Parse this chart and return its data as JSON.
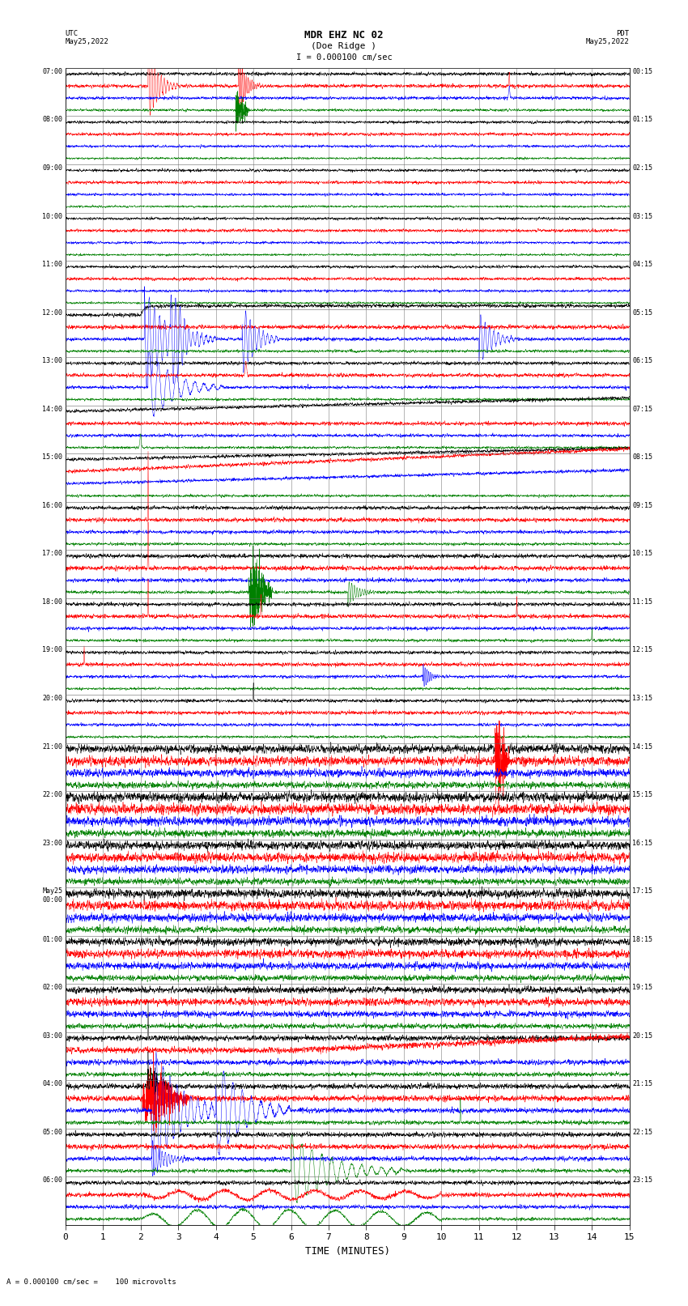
{
  "title_line1": "MDR EHZ NC 02",
  "title_line2": "(Doe Ridge )",
  "scale_label": "= 0.000100 cm/sec",
  "xlabel": "TIME (MINUTES)",
  "footer_text": "= 0.000100 cm/sec =    100 microvolts",
  "utc_label": "UTC\nMay25,2022",
  "pdt_label": "PDT\nMay25,2022",
  "utc_times_left": [
    "07:00",
    "08:00",
    "09:00",
    "10:00",
    "11:00",
    "12:00",
    "13:00",
    "14:00",
    "15:00",
    "16:00",
    "17:00",
    "18:00",
    "19:00",
    "20:00",
    "21:00",
    "22:00",
    "23:00",
    "May25\n00:00",
    "01:00",
    "02:00",
    "03:00",
    "04:00",
    "05:00",
    "06:00"
  ],
  "pdt_times_right": [
    "00:15",
    "01:15",
    "02:15",
    "03:15",
    "04:15",
    "05:15",
    "06:15",
    "07:15",
    "08:15",
    "09:15",
    "10:15",
    "11:15",
    "12:15",
    "13:15",
    "14:15",
    "15:15",
    "16:15",
    "17:15",
    "18:15",
    "19:15",
    "20:15",
    "21:15",
    "22:15",
    "23:15"
  ],
  "n_rows": 24,
  "traces_per_row": 4,
  "trace_colors": [
    "black",
    "red",
    "blue",
    "green"
  ],
  "bg_color": "#ffffff",
  "plot_bg_color": "#ffffff",
  "fig_width": 8.5,
  "fig_height": 16.13,
  "dpi": 100,
  "xmin": 0,
  "xmax": 15,
  "xticks": [
    0,
    1,
    2,
    3,
    4,
    5,
    6,
    7,
    8,
    9,
    10,
    11,
    12,
    13,
    14,
    15
  ],
  "grid_color": "#999999",
  "seed": 42
}
